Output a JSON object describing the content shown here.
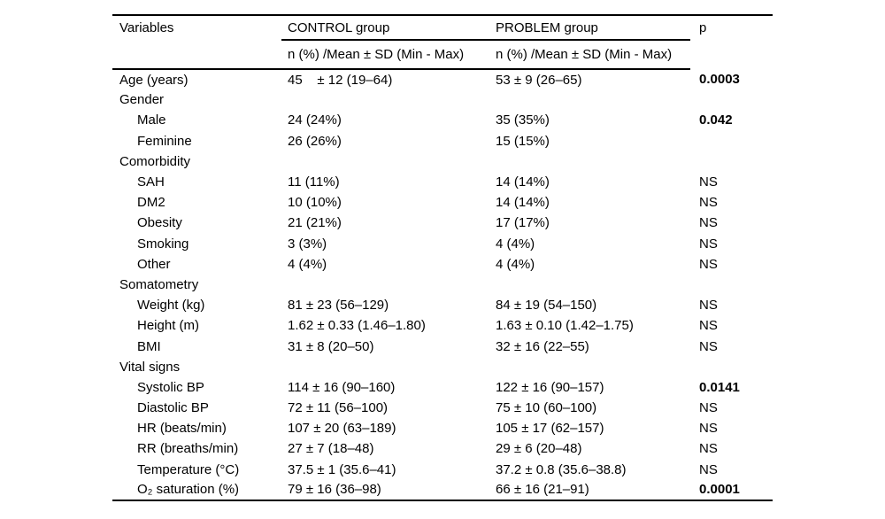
{
  "table": {
    "header": {
      "variables": "Variables",
      "control_group": "CONTROL group",
      "problem_group": "PROBLEM group",
      "p": "p",
      "control_subheader": "n (%) /Mean ± SD (Min - Max)",
      "problem_subheader": "n (%) /Mean ± SD (Min - Max)"
    },
    "rows": [
      {
        "label": "Age (years)",
        "indent": false,
        "control": "45    ± 12 (19–64)",
        "problem": "53 ± 9 (26–65)",
        "p": "0.0003",
        "p_bold": true
      },
      {
        "label": "Gender",
        "indent": false,
        "control": "",
        "problem": "",
        "p": "",
        "p_bold": false
      },
      {
        "label": "Male",
        "indent": true,
        "control": "24 (24%)",
        "problem": "35 (35%)",
        "p": "0.042",
        "p_bold": true
      },
      {
        "label": "Feminine",
        "indent": true,
        "control": "26 (26%)",
        "problem": "15 (15%)",
        "p": "",
        "p_bold": false
      },
      {
        "label": "Comorbidity",
        "indent": false,
        "control": "",
        "problem": "",
        "p": "",
        "p_bold": false
      },
      {
        "label": "SAH",
        "indent": true,
        "control": "11 (11%)",
        "problem": "14 (14%)",
        "p": "NS",
        "p_bold": false
      },
      {
        "label": "DM2",
        "indent": true,
        "control": "10 (10%)",
        "problem": "14 (14%)",
        "p": "NS",
        "p_bold": false
      },
      {
        "label": "Obesity",
        "indent": true,
        "control": "21 (21%)",
        "problem": "17 (17%)",
        "p": "NS",
        "p_bold": false
      },
      {
        "label": "Smoking",
        "indent": true,
        "control": "3 (3%)",
        "problem": "4 (4%)",
        "p": "NS",
        "p_bold": false
      },
      {
        "label": "Other",
        "indent": true,
        "control": "4 (4%)",
        "problem": "4 (4%)",
        "p": "NS",
        "p_bold": false
      },
      {
        "label": "Somatometry",
        "indent": false,
        "control": "",
        "problem": "",
        "p": "",
        "p_bold": false
      },
      {
        "label": "Weight (kg)",
        "indent": true,
        "control": "81 ± 23 (56–129)",
        "problem": "84 ± 19 (54–150)",
        "p": "NS",
        "p_bold": false
      },
      {
        "label": "Height (m)",
        "indent": true,
        "control": "1.62 ± 0.33 (1.46–1.80)",
        "problem": "1.63 ± 0.10 (1.42–1.75)",
        "p": "NS",
        "p_bold": false
      },
      {
        "label": "BMI",
        "indent": true,
        "control": "31 ± 8 (20–50)",
        "problem": "32 ± 16 (22–55)",
        "p": "NS",
        "p_bold": false
      },
      {
        "label": "Vital signs",
        "indent": false,
        "control": "",
        "problem": "",
        "p": "",
        "p_bold": false
      },
      {
        "label": "Systolic BP",
        "indent": true,
        "control": "114 ± 16 (90–160)",
        "problem": "122 ± 16 (90–157)",
        "p": "0.0141",
        "p_bold": true
      },
      {
        "label": "Diastolic BP",
        "indent": true,
        "control": "72 ± 11 (56–100)",
        "problem": "75 ± 10 (60–100)",
        "p": "NS",
        "p_bold": false
      },
      {
        "label": "HR (beats/min)",
        "indent": true,
        "control": "107 ± 20 (63–189)",
        "problem": "105 ± 17 (62–157)",
        "p": "NS",
        "p_bold": false
      },
      {
        "label": "RR (breaths/min)",
        "indent": true,
        "control": "27 ± 7 (18–48)",
        "problem": "29 ± 6 (20–48)",
        "p": "NS",
        "p_bold": false
      },
      {
        "label": "Temperature (°C)",
        "indent": true,
        "control": "37.5 ± 1 (35.6–41)",
        "problem": "37.2 ± 0.8 (35.6–38.8)",
        "p": "NS",
        "p_bold": false
      },
      {
        "label": "O₂ saturation (%)",
        "indent": true,
        "control": "79 ± 16 (36–98)",
        "problem": "66 ± 16 (21–91)",
        "p": "0.0001",
        "p_bold": true
      }
    ]
  }
}
